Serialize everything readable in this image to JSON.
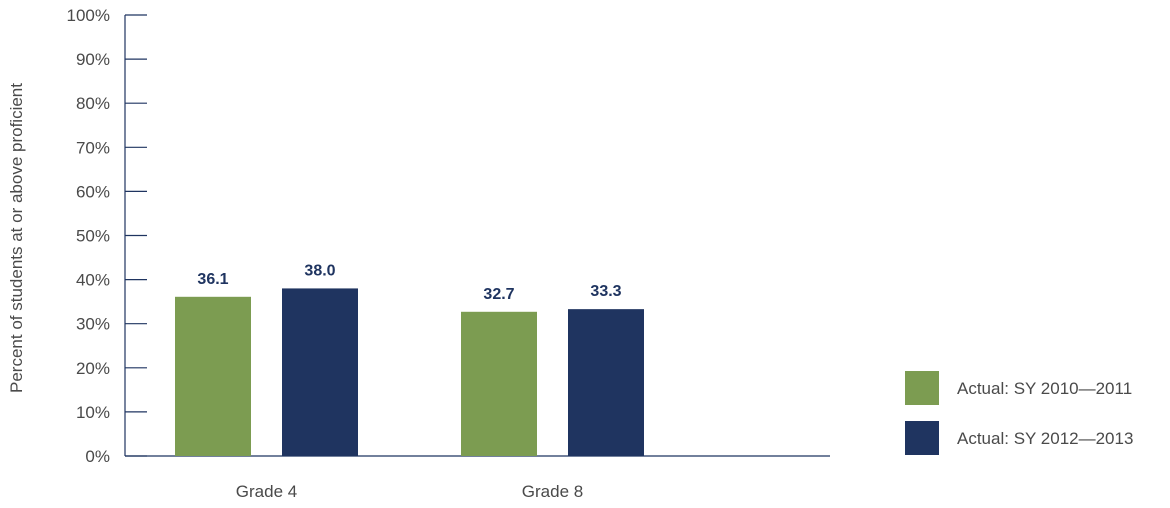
{
  "chart_data": {
    "type": "bar",
    "categories": [
      "Grade 4",
      "Grade 8"
    ],
    "series": [
      {
        "name": "Actual: SY 2010—2011",
        "values": [
          36.1,
          32.7
        ],
        "color": "#7c9c51"
      },
      {
        "name": "Actual: SY 2012—2013",
        "values": [
          38.0,
          33.3
        ],
        "color": "#1f3460"
      }
    ],
    "data_labels": [
      [
        "36.1",
        "32.7"
      ],
      [
        "38.0",
        "33.3"
      ]
    ],
    "ylabel": "Percent of students at or above proficient",
    "xlabel": "",
    "ylim": [
      0,
      100
    ],
    "yticks": [
      "0%",
      "10%",
      "20%",
      "30%",
      "40%",
      "50%",
      "60%",
      "70%",
      "80%",
      "90%",
      "100%"
    ],
    "legend_position": "right",
    "grid": false
  }
}
